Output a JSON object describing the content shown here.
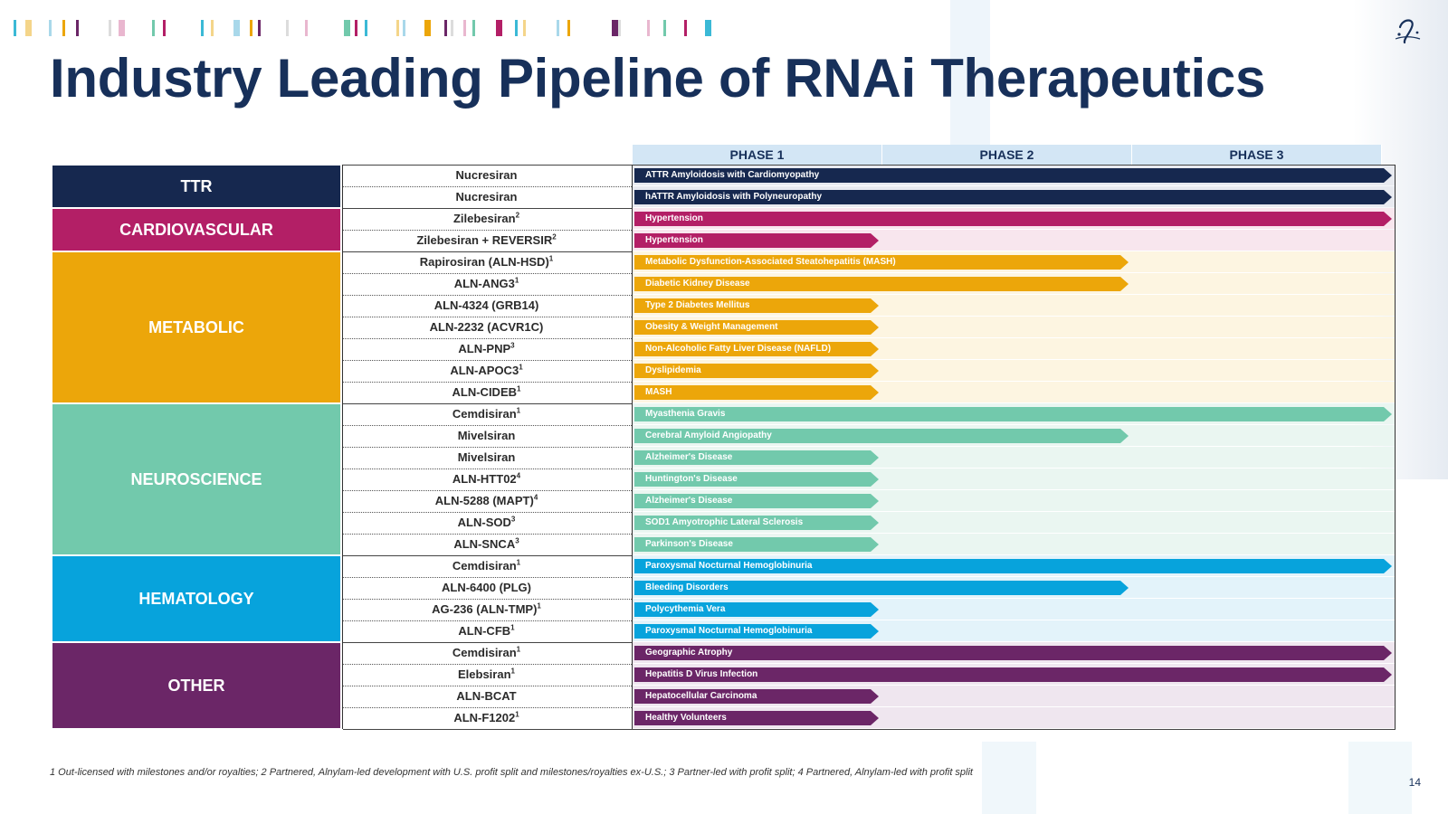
{
  "title": "Industry Leading Pipeline of RNAi Therapeutics",
  "phases": [
    "PHASE 1",
    "PHASE 2",
    "PHASE 3"
  ],
  "categories": [
    {
      "name": "TTR",
      "color": "#16284f",
      "tint": "#e8eaf0",
      "rows": [
        {
          "drug": "Nucresiran",
          "note": "",
          "indication": "ATTR Amyloidosis with Cardiomyopathy",
          "phase": 3
        },
        {
          "drug": "Nucresiran",
          "note": "",
          "indication": "hATTR Amyloidosis with Polyneuropathy",
          "phase": 3
        }
      ]
    },
    {
      "name": "CARDIOVASCULAR",
      "color": "#b31f66",
      "tint": "#f8e6ee",
      "rows": [
        {
          "drug": "Zilebesiran",
          "note": "2",
          "indication": "Hypertension",
          "phase": 3
        },
        {
          "drug": "Zilebesiran + REVERSIR",
          "note": "2",
          "indication": "Hypertension",
          "phase": 1
        }
      ]
    },
    {
      "name": "METABOLIC",
      "color": "#eca60a",
      "tint": "#fdf5e1",
      "rows": [
        {
          "drug": "Rapirosiran (ALN-HSD)",
          "note": "1",
          "indication": "Metabolic Dysfunction-Associated Steatohepatitis (MASH)",
          "phase": 2
        },
        {
          "drug": "ALN-ANG3",
          "note": "1",
          "indication": "Diabetic Kidney Disease",
          "phase": 2
        },
        {
          "drug": "ALN-4324 (GRB14)",
          "note": "",
          "indication": "Type 2 Diabetes Mellitus",
          "phase": 1
        },
        {
          "drug": "ALN-2232 (ACVR1C)",
          "note": "",
          "indication": "Obesity & Weight Management",
          "phase": 1
        },
        {
          "drug": "ALN-PNP",
          "note": "3",
          "indication": "Non-Alcoholic Fatty Liver Disease (NAFLD)",
          "phase": 1
        },
        {
          "drug": "ALN-APOC3",
          "note": "1",
          "indication": "Dyslipidemia",
          "phase": 1
        },
        {
          "drug": "ALN-CIDEB",
          "note": "1",
          "indication": "MASH",
          "phase": 1
        }
      ]
    },
    {
      "name": "NEUROSCIENCE",
      "color": "#72c9ac",
      "tint": "#eaf6f1",
      "rows": [
        {
          "drug": "Cemdisiran",
          "note": "1",
          "indication": "Myasthenia Gravis",
          "phase": 3
        },
        {
          "drug": "Mivelsiran",
          "note": "",
          "indication": "Cerebral Amyloid Angiopathy",
          "phase": 2
        },
        {
          "drug": "Mivelsiran",
          "note": "",
          "indication": "Alzheimer's Disease",
          "phase": 1
        },
        {
          "drug": "ALN-HTT02",
          "note": "4",
          "indication": "Huntington's Disease",
          "phase": 1
        },
        {
          "drug": "ALN-5288 (MAPT)",
          "note": "4",
          "indication": "Alzheimer's Disease",
          "phase": 1
        },
        {
          "drug": "ALN-SOD",
          "note": "3",
          "indication": "SOD1 Amyotrophic Lateral Sclerosis",
          "phase": 1
        },
        {
          "drug": "ALN-SNCA",
          "note": "3",
          "indication": "Parkinson's Disease",
          "phase": 1
        }
      ]
    },
    {
      "name": "HEMATOLOGY",
      "color": "#07a3dc",
      "tint": "#e3f3fa",
      "rows": [
        {
          "drug": "Cemdisiran",
          "note": "1",
          "indication": "Paroxysmal Nocturnal Hemoglobinuria",
          "phase": 3
        },
        {
          "drug": "ALN-6400 (PLG)",
          "note": "",
          "indication": "Bleeding Disorders",
          "phase": 2
        },
        {
          "drug": "AG-236 (ALN-TMP)",
          "note": "1",
          "indication": "Polycythemia Vera",
          "phase": 1
        },
        {
          "drug": "ALN-CFB",
          "note": "1",
          "indication": "Paroxysmal Nocturnal Hemoglobinuria",
          "phase": 1
        }
      ]
    },
    {
      "name": "OTHER",
      "color": "#6b2667",
      "tint": "#efe6ef",
      "rows": [
        {
          "drug": "Cemdisiran",
          "note": "1",
          "indication": "Geographic Atrophy",
          "phase": 3
        },
        {
          "drug": "Elebsiran",
          "note": "1",
          "indication": "Hepatitis D Virus Infection",
          "phase": 3
        },
        {
          "drug": "ALN-BCAT",
          "note": "",
          "indication": "Hepatocellular Carcinoma",
          "phase": 1
        },
        {
          "drug": "ALN-F1202",
          "note": "1",
          "indication": "Healthy Volunteers",
          "phase": 1
        }
      ]
    }
  ],
  "footnote": "1 Out-licensed with milestones and/or royalties; 2 Partnered, Alnylam-led development with U.S. profit split and milestones/royalties ex-U.S.; 3 Partner-led with profit split; 4 Partnered, Alnylam-led with profit split",
  "page_number": "14",
  "logo_icon": "alnylam-logo-icon"
}
